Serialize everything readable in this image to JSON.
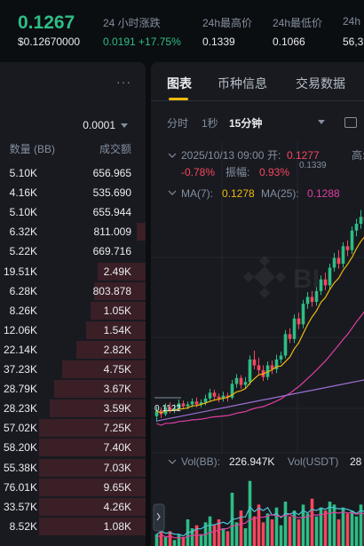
{
  "header": {
    "last_price": "0.1267",
    "usd_price": "$0.12670000",
    "change_label": "24 小时涨跌",
    "change_abs": "0.0191",
    "change_pct": "+17.75%",
    "high_label": "24h最高价",
    "high_value": "0.1339",
    "low_label": "24h最低价",
    "low_value": "0.1066",
    "vol_label": "24h",
    "vol_value": "56,3"
  },
  "orderbook": {
    "menu": "···",
    "precision": "0.0001",
    "qty_header": "数量 (BB)",
    "amount_header": "成交额",
    "rows": [
      {
        "qty": "5.10K",
        "amount": "656.965",
        "depth": 0
      },
      {
        "qty": "4.16K",
        "amount": "535.690",
        "depth": 0
      },
      {
        "qty": "5.10K",
        "amount": "655.944",
        "depth": 0
      },
      {
        "qty": "6.32K",
        "amount": "811.009",
        "depth": 0.08
      },
      {
        "qty": "5.22K",
        "amount": "669.716",
        "depth": 0
      },
      {
        "qty": "19.51K",
        "amount": "2.49K",
        "depth": 0.45
      },
      {
        "qty": "6.28K",
        "amount": "803.878",
        "depth": 0.48
      },
      {
        "qty": "8.26K",
        "amount": "1.05K",
        "depth": 0.52
      },
      {
        "qty": "12.06K",
        "amount": "1.54K",
        "depth": 0.56
      },
      {
        "qty": "22.14K",
        "amount": "2.82K",
        "depth": 0.65
      },
      {
        "qty": "37.23K",
        "amount": "4.75K",
        "depth": 0.78
      },
      {
        "qty": "28.79K",
        "amount": "3.67K",
        "depth": 0.86
      },
      {
        "qty": "28.23K",
        "amount": "3.59K",
        "depth": 0.9
      },
      {
        "qty": "57.02K",
        "amount": "7.25K",
        "depth": 1
      },
      {
        "qty": "58.20K",
        "amount": "7.40K",
        "depth": 1
      },
      {
        "qty": "55.38K",
        "amount": "7.03K",
        "depth": 1
      },
      {
        "qty": "76.01K",
        "amount": "9.65K",
        "depth": 1
      },
      {
        "qty": "33.57K",
        "amount": "4.26K",
        "depth": 1
      },
      {
        "qty": "8.52K",
        "amount": "1.08K",
        "depth": 1
      }
    ]
  },
  "chart": {
    "tabs": [
      "图表",
      "币种信息",
      "交易数据"
    ],
    "intervals": [
      "分时",
      "1秒",
      "15分钟"
    ],
    "candle_date": "2025/10/13 09:00",
    "open_label": "开:",
    "open_value": "0.1277",
    "high_label": "高:",
    "change_value": "-0.78%",
    "amplitude_label": "振幅:",
    "amplitude_value": "0.93%",
    "ma7_label": "MA(7):",
    "ma7_value": "0.1278",
    "ma25_label": "MA(25):",
    "ma25_value": "0.1288",
    "peak_label": "0.1339",
    "low_label": "0.1122",
    "vol_bb_label": "Vol(BB):",
    "vol_bb_value": "226.947K",
    "vol_usdt_label": "Vol(USDT)",
    "vol_usdt_value": "28",
    "colors": {
      "up": "#2ebd85",
      "down": "#f6465d",
      "ma7": "#f0b90b",
      "ma25": "#e03ea0",
      "ma99": "#9b6fd0"
    }
  },
  "chart_data": {
    "type": "candlestick",
    "candles": [
      {
        "o": 0.1128,
        "c": 0.1133,
        "h": 0.1138,
        "l": 0.1122
      },
      {
        "o": 0.1133,
        "c": 0.113,
        "h": 0.1137,
        "l": 0.1126
      },
      {
        "o": 0.113,
        "c": 0.1137,
        "h": 0.1141,
        "l": 0.1128
      },
      {
        "o": 0.1137,
        "c": 0.1134,
        "h": 0.1142,
        "l": 0.1131
      },
      {
        "o": 0.1134,
        "c": 0.1136,
        "h": 0.114,
        "l": 0.1131
      },
      {
        "o": 0.1136,
        "c": 0.1141,
        "h": 0.1145,
        "l": 0.1133
      },
      {
        "o": 0.1141,
        "c": 0.1138,
        "h": 0.1144,
        "l": 0.1135
      },
      {
        "o": 0.1138,
        "c": 0.114,
        "h": 0.1143,
        "l": 0.1135
      },
      {
        "o": 0.114,
        "c": 0.1143,
        "h": 0.1146,
        "l": 0.1137
      },
      {
        "o": 0.1143,
        "c": 0.114,
        "h": 0.1147,
        "l": 0.1137
      },
      {
        "o": 0.114,
        "c": 0.1142,
        "h": 0.1145,
        "l": 0.1137
      },
      {
        "o": 0.1142,
        "c": 0.1146,
        "h": 0.115,
        "l": 0.1139
      },
      {
        "o": 0.1146,
        "c": 0.1152,
        "h": 0.1156,
        "l": 0.1143
      },
      {
        "o": 0.1152,
        "c": 0.1148,
        "h": 0.1155,
        "l": 0.1144
      },
      {
        "o": 0.1148,
        "c": 0.1146,
        "h": 0.1151,
        "l": 0.1142
      },
      {
        "o": 0.1146,
        "c": 0.1149,
        "h": 0.1153,
        "l": 0.1143
      },
      {
        "o": 0.1149,
        "c": 0.1147,
        "h": 0.1152,
        "l": 0.1143
      },
      {
        "o": 0.1147,
        "c": 0.1161,
        "h": 0.1165,
        "l": 0.1145
      },
      {
        "o": 0.1161,
        "c": 0.1167,
        "h": 0.1171,
        "l": 0.1157
      },
      {
        "o": 0.1167,
        "c": 0.116,
        "h": 0.117,
        "l": 0.1156
      },
      {
        "o": 0.116,
        "c": 0.1163,
        "h": 0.1168,
        "l": 0.1156
      },
      {
        "o": 0.1163,
        "c": 0.1186,
        "h": 0.119,
        "l": 0.116
      },
      {
        "o": 0.1186,
        "c": 0.118,
        "h": 0.1195,
        "l": 0.1176
      },
      {
        "o": 0.118,
        "c": 0.1175,
        "h": 0.1188,
        "l": 0.117
      },
      {
        "o": 0.1175,
        "c": 0.1168,
        "h": 0.118,
        "l": 0.1164
      },
      {
        "o": 0.1168,
        "c": 0.118,
        "h": 0.1184,
        "l": 0.1165
      },
      {
        "o": 0.118,
        "c": 0.1176,
        "h": 0.1185,
        "l": 0.1171
      },
      {
        "o": 0.1176,
        "c": 0.1186,
        "h": 0.1191,
        "l": 0.1172
      },
      {
        "o": 0.1186,
        "c": 0.119,
        "h": 0.1194,
        "l": 0.1182
      },
      {
        "o": 0.119,
        "c": 0.1212,
        "h": 0.1216,
        "l": 0.1187
      },
      {
        "o": 0.1212,
        "c": 0.1207,
        "h": 0.1218,
        "l": 0.1203
      },
      {
        "o": 0.1207,
        "c": 0.1228,
        "h": 0.1232,
        "l": 0.1203
      },
      {
        "o": 0.1228,
        "c": 0.1222,
        "h": 0.1234,
        "l": 0.1217
      },
      {
        "o": 0.1222,
        "c": 0.1243,
        "h": 0.1247,
        "l": 0.1218
      },
      {
        "o": 0.1243,
        "c": 0.125,
        "h": 0.1255,
        "l": 0.1238
      },
      {
        "o": 0.125,
        "c": 0.1245,
        "h": 0.1256,
        "l": 0.124
      },
      {
        "o": 0.1245,
        "c": 0.1256,
        "h": 0.126,
        "l": 0.1241
      },
      {
        "o": 0.1256,
        "c": 0.1268,
        "h": 0.1272,
        "l": 0.1252
      },
      {
        "o": 0.1268,
        "c": 0.1262,
        "h": 0.1275,
        "l": 0.1257
      },
      {
        "o": 0.1262,
        "c": 0.128,
        "h": 0.1284,
        "l": 0.1258
      },
      {
        "o": 0.128,
        "c": 0.129,
        "h": 0.1295,
        "l": 0.1276
      },
      {
        "o": 0.129,
        "c": 0.1284,
        "h": 0.1298,
        "l": 0.1279
      },
      {
        "o": 0.1284,
        "c": 0.1302,
        "h": 0.1306,
        "l": 0.128
      },
      {
        "o": 0.1302,
        "c": 0.1298,
        "h": 0.1308,
        "l": 0.1292
      },
      {
        "o": 0.1298,
        "c": 0.1318,
        "h": 0.1322,
        "l": 0.1294
      },
      {
        "o": 0.1318,
        "c": 0.1325,
        "h": 0.133,
        "l": 0.1312
      },
      {
        "o": 0.1325,
        "c": 0.1332,
        "h": 0.1339,
        "l": 0.132
      },
      {
        "o": 0.1332,
        "c": 0.1328,
        "h": 0.1337,
        "l": 0.1322
      },
      {
        "o": 0.1328,
        "c": 0.1335,
        "h": 0.1339,
        "l": 0.1324
      }
    ],
    "volume": [
      4,
      6,
      3,
      5,
      2,
      4,
      3,
      9,
      6,
      7,
      4,
      8,
      10,
      7,
      9,
      6,
      5,
      18,
      8,
      12,
      6,
      22,
      10,
      14,
      8,
      11,
      9,
      13,
      7,
      15,
      10,
      12,
      9,
      14,
      11,
      16,
      10,
      13,
      12,
      15,
      14,
      9,
      13,
      11,
      12,
      10,
      14,
      11,
      12
    ],
    "y_range": [
      0.1095,
      0.1345
    ],
    "vol_range": [
      0,
      24
    ]
  }
}
